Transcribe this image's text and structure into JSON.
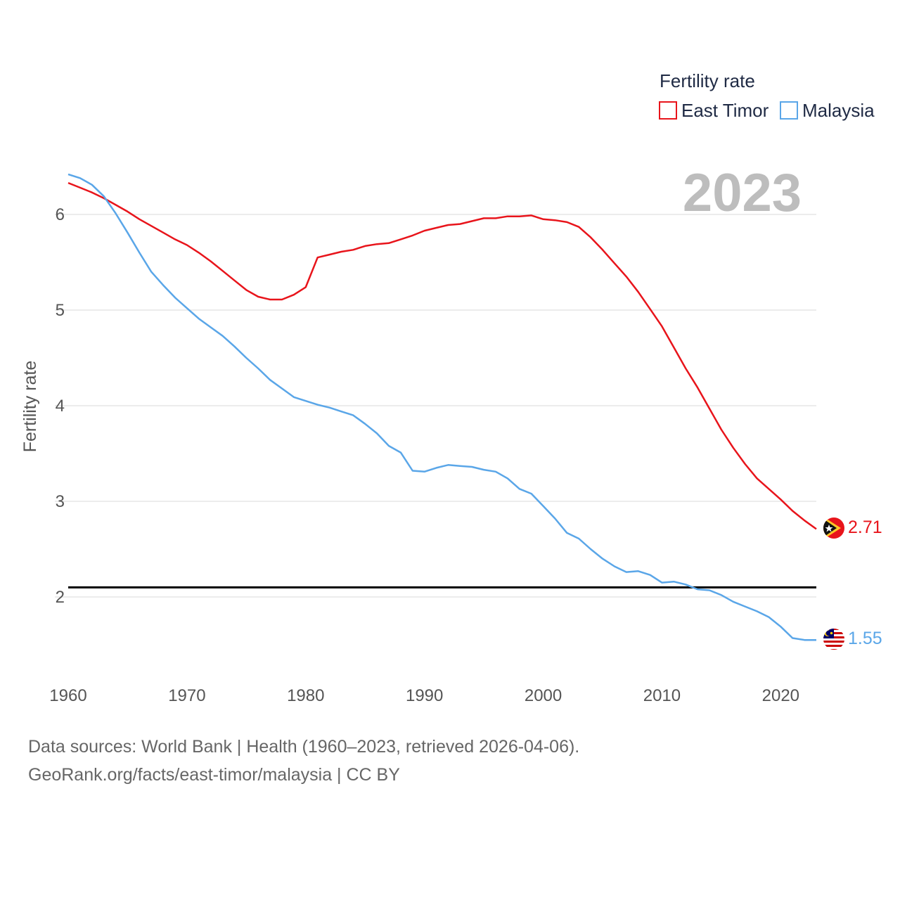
{
  "chart_data": {
    "type": "line",
    "title": "",
    "year_label": "2023",
    "ylabel": "Fertility rate",
    "xlabel": "",
    "xlim": [
      1960,
      2023
    ],
    "ylim": [
      1.2,
      6.6
    ],
    "x_ticks": [
      1960,
      1970,
      1980,
      1990,
      2000,
      2010,
      2020
    ],
    "y_ticks": [
      2,
      3,
      4,
      5,
      6
    ],
    "reference_line": 2.1,
    "legend": {
      "title": "Fertility rate",
      "position": "top-right"
    },
    "x": [
      1960,
      1961,
      1962,
      1963,
      1964,
      1965,
      1966,
      1967,
      1968,
      1969,
      1970,
      1971,
      1972,
      1973,
      1974,
      1975,
      1976,
      1977,
      1978,
      1979,
      1980,
      1981,
      1982,
      1983,
      1984,
      1985,
      1986,
      1987,
      1988,
      1989,
      1990,
      1991,
      1992,
      1993,
      1994,
      1995,
      1996,
      1997,
      1998,
      1999,
      2000,
      2001,
      2002,
      2003,
      2004,
      2005,
      2006,
      2007,
      2008,
      2009,
      2010,
      2011,
      2012,
      2013,
      2014,
      2015,
      2016,
      2017,
      2018,
      2019,
      2020,
      2021,
      2022,
      2023
    ],
    "series": [
      {
        "name": "East Timor",
        "color": "#e8141b",
        "end_label": "2.71",
        "values": [
          6.33,
          6.28,
          6.23,
          6.17,
          6.1,
          6.03,
          5.95,
          5.88,
          5.81,
          5.74,
          5.68,
          5.6,
          5.51,
          5.41,
          5.31,
          5.21,
          5.14,
          5.11,
          5.11,
          5.16,
          5.24,
          5.55,
          5.58,
          5.61,
          5.63,
          5.67,
          5.69,
          5.7,
          5.74,
          5.78,
          5.83,
          5.86,
          5.89,
          5.9,
          5.93,
          5.96,
          5.96,
          5.98,
          5.98,
          5.99,
          5.95,
          5.94,
          5.92,
          5.87,
          5.76,
          5.63,
          5.49,
          5.35,
          5.19,
          5.01,
          4.83,
          4.61,
          4.39,
          4.19,
          3.97,
          3.75,
          3.56,
          3.39,
          3.24,
          3.13,
          3.02,
          2.9,
          2.8,
          2.71
        ]
      },
      {
        "name": "Malaysia",
        "color": "#5aa6e8",
        "end_label": "1.55",
        "values": [
          6.42,
          6.38,
          6.31,
          6.19,
          6.01,
          5.81,
          5.6,
          5.4,
          5.26,
          5.13,
          5.02,
          4.91,
          4.82,
          4.73,
          4.62,
          4.5,
          4.39,
          4.27,
          4.18,
          4.09,
          4.05,
          4.01,
          3.98,
          3.94,
          3.9,
          3.81,
          3.71,
          3.58,
          3.51,
          3.32,
          3.31,
          3.35,
          3.38,
          3.37,
          3.36,
          3.33,
          3.31,
          3.24,
          3.13,
          3.08,
          2.95,
          2.82,
          2.67,
          2.61,
          2.5,
          2.4,
          2.32,
          2.26,
          2.27,
          2.23,
          2.15,
          2.16,
          2.13,
          2.08,
          2.07,
          2.02,
          1.95,
          1.9,
          1.85,
          1.79,
          1.69,
          1.57,
          1.55,
          1.55
        ]
      }
    ]
  },
  "footer": {
    "sources": "Data sources: World Bank | Health (1960–2023, retrieved 2026-04-06).",
    "attribution": "GeoRank.org/facts/east-timor/malaysia | CC BY"
  }
}
